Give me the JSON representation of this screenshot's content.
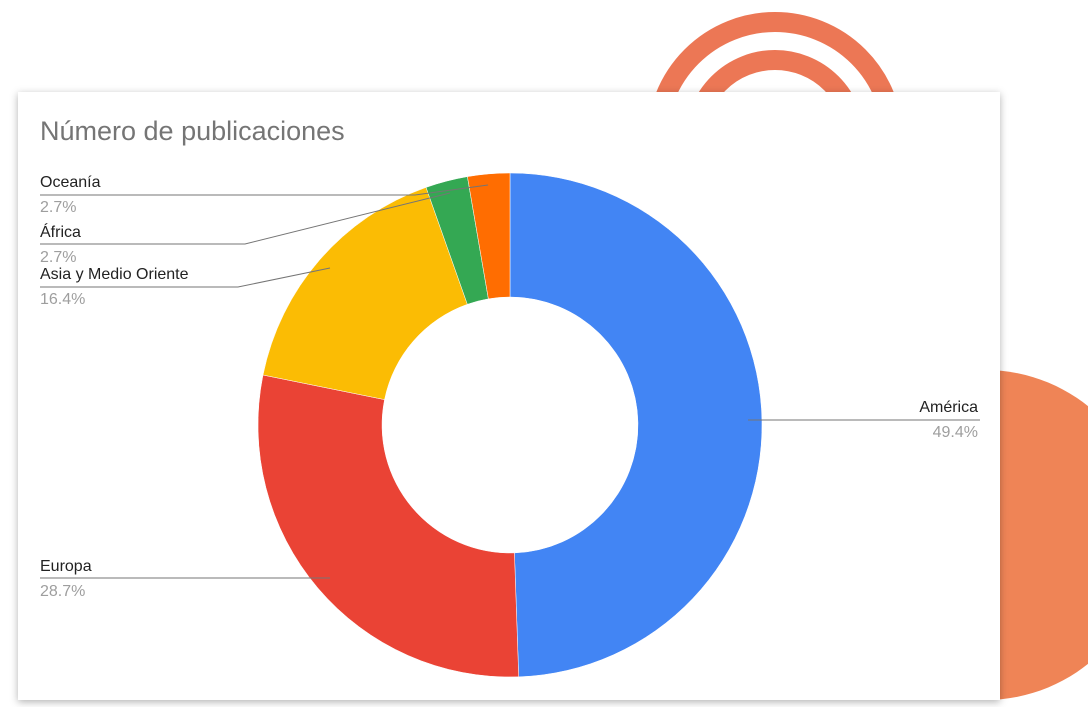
{
  "chart_data": {
    "type": "donut",
    "title": "Número de publicaciones",
    "categories": [
      "América",
      "Europa",
      "Asia y Medio Oriente",
      "África",
      "Oceanía"
    ],
    "values": [
      49.4,
      28.7,
      16.4,
      2.7,
      2.7
    ],
    "value_labels": [
      "49.4%",
      "28.7%",
      "16.4%",
      "2.7%",
      "2.7%"
    ],
    "colors": [
      "#4285f4",
      "#ea4335",
      "#fbbc04",
      "#34a853",
      "#ff6d01"
    ]
  }
}
